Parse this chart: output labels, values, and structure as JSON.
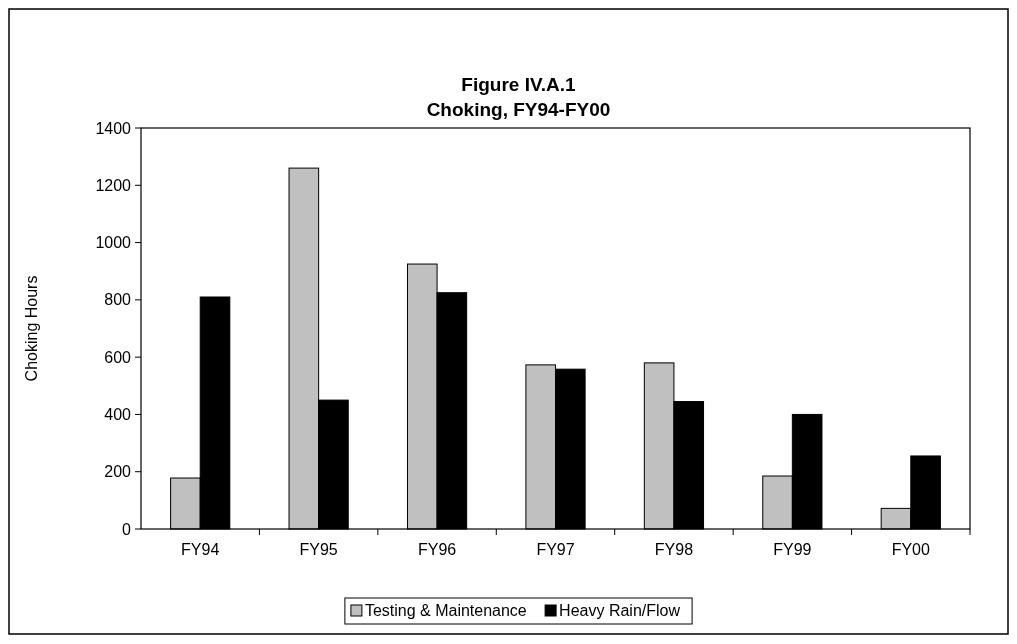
{
  "chart_data": {
    "type": "bar",
    "title": "Figure IV.A.1\nChoking, FY94-FY00",
    "ylabel": "Choking Hours",
    "categories": [
      "FY94",
      "FY95",
      "FY96",
      "FY97",
      "FY98",
      "FY99",
      "FY00"
    ],
    "series": [
      {
        "name": "Testing & Maintenance",
        "color": "#c0c0c0",
        "values": [
          178,
          1260,
          925,
          573,
          580,
          185,
          72
        ]
      },
      {
        "name": "Heavy Rain/Flow",
        "color": "#000000",
        "values": [
          810,
          450,
          825,
          558,
          445,
          400,
          255
        ]
      }
    ],
    "ylim": [
      0,
      1400
    ],
    "yticks": [
      0,
      200,
      400,
      600,
      800,
      1000,
      1200,
      1400
    ],
    "grid": false,
    "legend": "bottom"
  }
}
